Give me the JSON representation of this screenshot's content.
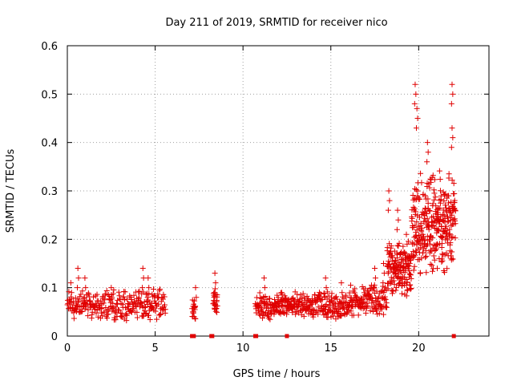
{
  "chart_data": {
    "type": "scatter",
    "title": "Day 211 of 2019, SRMTID for receiver nico",
    "xlabel": "GPS time / hours",
    "ylabel": "SRMTID / TECUs",
    "xlim": [
      0,
      24
    ],
    "ylim": [
      0,
      0.6
    ],
    "xticks": [
      0,
      5,
      10,
      15,
      20
    ],
    "xtick_labels": [
      "0",
      "5",
      "10",
      "15",
      "20"
    ],
    "yticks": [
      0,
      0.1,
      0.2,
      0.3,
      0.4,
      0.5,
      0.6
    ],
    "ytick_labels": [
      "0",
      "0.1",
      "0.2",
      "0.3",
      "0.4",
      "0.5",
      "0.6"
    ],
    "grid": true,
    "marker": "+",
    "series_color": "#e00000",
    "series": [
      {
        "name": "SRMTID",
        "segments": [
          {
            "from": 0.0,
            "to": 5.6,
            "n": 280,
            "base": 0.065,
            "spread": 0.035,
            "spikes": [
              [
                0.2,
                0.11
              ],
              [
                0.6,
                0.14
              ],
              [
                1.0,
                0.12
              ],
              [
                2.5,
                0.1
              ],
              [
                4.3,
                0.14
              ],
              [
                4.6,
                0.12
              ]
            ]
          },
          {
            "from": 7.1,
            "to": 7.3,
            "n": 18,
            "base": 0.055,
            "spread": 0.025,
            "spikes": [
              [
                7.3,
                0.1
              ]
            ]
          },
          {
            "from": 8.3,
            "to": 8.55,
            "n": 24,
            "base": 0.07,
            "spread": 0.03,
            "spikes": [
              [
                8.4,
                0.13
              ]
            ]
          },
          {
            "from": 10.7,
            "to": 16.0,
            "n": 330,
            "base": 0.063,
            "spread": 0.03,
            "spikes": [
              [
                11.2,
                0.12
              ],
              [
                12.2,
                0.09
              ],
              [
                14.7,
                0.12
              ],
              [
                15.6,
                0.11
              ]
            ]
          },
          {
            "from": 16.0,
            "to": 18.2,
            "n": 140,
            "base": 0.075,
            "spread": 0.035,
            "spikes": [
              [
                17.5,
                0.14
              ],
              [
                18.0,
                0.15
              ]
            ]
          },
          {
            "from": 18.2,
            "to": 19.6,
            "n": 160,
            "base": 0.14,
            "spread": 0.06,
            "spikes": [
              [
                18.3,
                0.3
              ],
              [
                18.8,
                0.26
              ],
              [
                19.3,
                0.21
              ]
            ]
          },
          {
            "from": 19.6,
            "to": 22.1,
            "n": 320,
            "base": 0.23,
            "spread": 0.12,
            "spikes": [
              [
                19.8,
                0.52
              ],
              [
                19.9,
                0.47
              ],
              [
                20.5,
                0.4
              ],
              [
                21.9,
                0.52
              ],
              [
                21.9,
                0.43
              ]
            ]
          }
        ],
        "zero_points": [
          7.1,
          7.2,
          8.2,
          8.25,
          10.7,
          10.75,
          12.5,
          22.0
        ]
      }
    ]
  }
}
